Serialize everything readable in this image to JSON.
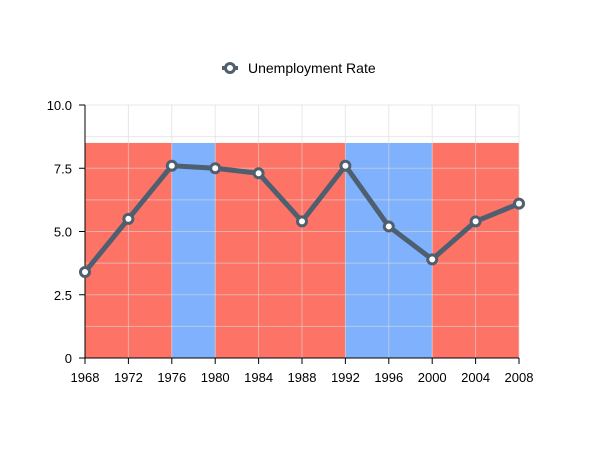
{
  "chart_data": {
    "type": "line",
    "title": "",
    "xlabel": "",
    "ylabel": "",
    "x": [
      1968,
      1972,
      1976,
      1980,
      1984,
      1988,
      1992,
      1996,
      2000,
      2004,
      2008
    ],
    "series": [
      {
        "name": "Unemployment Rate",
        "values": [
          3.4,
          5.5,
          7.6,
          7.5,
          7.3,
          5.4,
          7.6,
          5.2,
          3.9,
          5.4,
          6.1
        ]
      }
    ],
    "xlim": [
      1968,
      2008
    ],
    "ylim": [
      0,
      10
    ],
    "x_ticks": [
      "1968",
      "1972",
      "1976",
      "1980",
      "1984",
      "1988",
      "1992",
      "1996",
      "2000",
      "2004",
      "2008"
    ],
    "y_ticks": [
      "0",
      "2.5",
      "5.0",
      "7.5",
      "10.0"
    ],
    "y_tick_values": [
      0,
      2.5,
      5,
      7.5,
      10
    ],
    "grid": true,
    "legend": "top",
    "background_bands": [
      {
        "start": 1968,
        "end": 1976,
        "top": 8.5,
        "color": "#fd7366"
      },
      {
        "start": 1976,
        "end": 1980,
        "top": 8.5,
        "color": "#80b1fd"
      },
      {
        "start": 1980,
        "end": 1992,
        "top": 8.5,
        "color": "#fd7366"
      },
      {
        "start": 1992,
        "end": 2000,
        "top": 8.5,
        "color": "#80b1fd"
      },
      {
        "start": 2000,
        "end": 2008,
        "top": 8.5,
        "color": "#fd7366"
      }
    ],
    "colors": {
      "line": "#4e5f70",
      "marker_fill": "#ffffff",
      "grid": "#d9d9d9",
      "axis": "#000000"
    }
  }
}
